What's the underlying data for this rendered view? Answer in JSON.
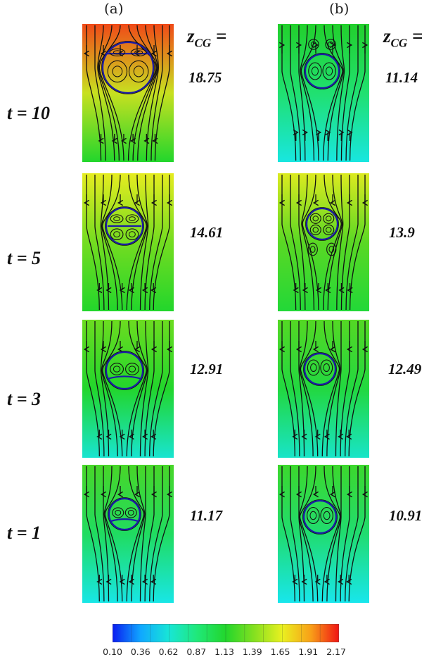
{
  "column_labels": [
    "(a)",
    "(b)"
  ],
  "z_label": {
    "main": "z",
    "sub": "CG",
    "suffix": " ="
  },
  "rows": [
    {
      "time": "t = 10",
      "values": [
        "18.75",
        "11.14"
      ]
    },
    {
      "time": "t = 5",
      "values": [
        "14.61",
        "13.9"
      ]
    },
    {
      "time": "t = 3",
      "values": [
        "12.91",
        "12.49"
      ]
    },
    {
      "time": "t = 1",
      "values": [
        "11.17",
        "10.91"
      ]
    }
  ],
  "colorbar": {
    "ticks": [
      "0.10",
      "0.36",
      "0.62",
      "0.87",
      "1.13",
      "1.39",
      "1.65",
      "1.91",
      "2.17"
    ],
    "colors": [
      "#0a1cf0",
      "#10a8ff",
      "#18e6d6",
      "#20e878",
      "#22d62c",
      "#84e020",
      "#eaf020",
      "#f8a018",
      "#f01414"
    ]
  }
}
